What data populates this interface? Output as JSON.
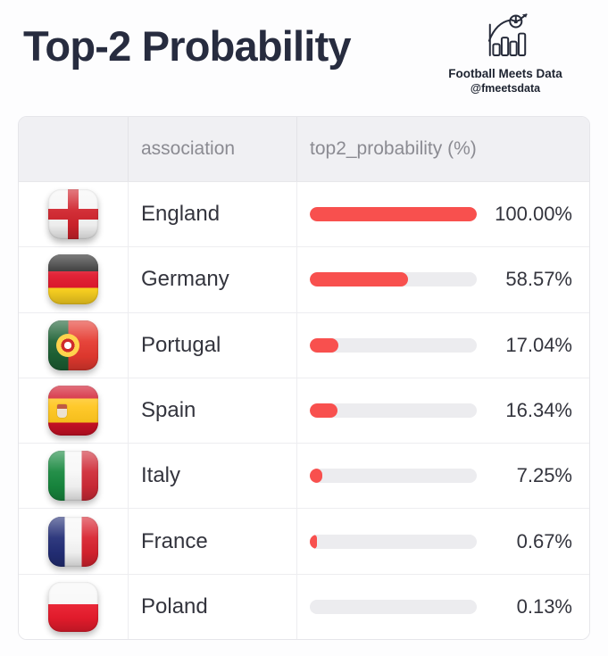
{
  "page": {
    "title": "Top-2 Probability"
  },
  "brand": {
    "name": "Football Meets Data",
    "handle": "@fmeetsdata",
    "logo_icon": "bar-chart-with-football-icon"
  },
  "table": {
    "header": {
      "flag_col": "",
      "association": "association",
      "probability": "top2_probability (%)"
    },
    "rows": [
      {
        "flag": "england",
        "association": "England",
        "value": 100.0,
        "label": "100.00%"
      },
      {
        "flag": "germany",
        "association": "Germany",
        "value": 58.57,
        "label": "58.57%"
      },
      {
        "flag": "portugal",
        "association": "Portugal",
        "value": 17.04,
        "label": "17.04%"
      },
      {
        "flag": "spain",
        "association": "Spain",
        "value": 16.34,
        "label": "16.34%"
      },
      {
        "flag": "italy",
        "association": "Italy",
        "value": 7.25,
        "label": "7.25%"
      },
      {
        "flag": "france",
        "association": "France",
        "value": 0.67,
        "label": "0.67%"
      },
      {
        "flag": "poland",
        "association": "Poland",
        "value": 0.13,
        "label": "0.13%"
      }
    ]
  },
  "chart_data": {
    "type": "bar",
    "orientation": "horizontal",
    "title": "Top-2 Probability",
    "categories": [
      "England",
      "Germany",
      "Portugal",
      "Spain",
      "Italy",
      "France",
      "Poland"
    ],
    "values": [
      100.0,
      58.57,
      17.04,
      16.34,
      7.25,
      0.67,
      0.13
    ],
    "value_labels": [
      "100.00%",
      "58.57%",
      "17.04%",
      "16.34%",
      "7.25%",
      "0.67%",
      "0.13%"
    ],
    "xlabel": "top2_probability (%)",
    "ylabel": "association",
    "xlim": [
      0,
      100
    ],
    "grid": false,
    "legend": false
  },
  "colors": {
    "bar_fill": "#f8504e",
    "bar_track": "#ececef",
    "header_bg": "#f0f0f3",
    "header_text": "#8b8b92",
    "body_text": "#33343d",
    "title_text": "#272c3f",
    "table_border": "#e6e6ea"
  }
}
